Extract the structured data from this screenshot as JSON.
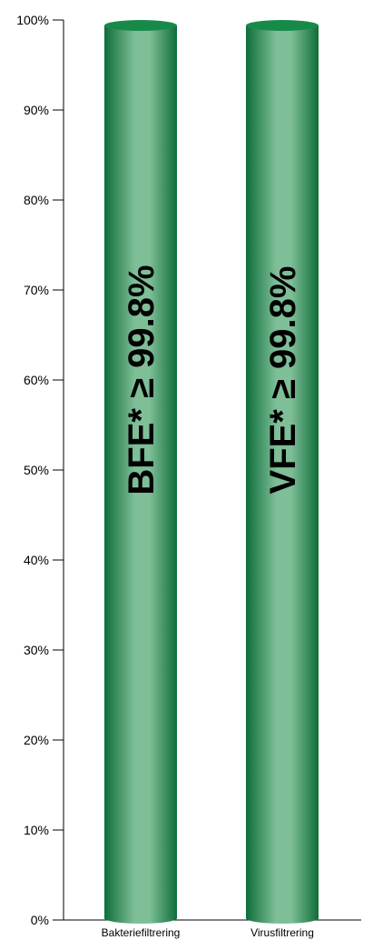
{
  "chart_data": {
    "type": "bar",
    "style": "cylinder",
    "categories": [
      "Bakteriefiltrering",
      "Virusfiltrering"
    ],
    "values": [
      100,
      100
    ],
    "bar_labels": [
      "BFE* ≥ 99.8%",
      "VFE* ≥ 99.8%"
    ],
    "ylim": [
      0,
      100
    ],
    "yticks": [
      "0%",
      "10%",
      "20%",
      "30%",
      "40%",
      "50%",
      "60%",
      "70%",
      "80%",
      "90%",
      "100%"
    ],
    "title": "",
    "xlabel": "",
    "ylabel": "",
    "grid": false,
    "colors": {
      "bar_dark": "#0e6e3a",
      "bar_mid": "#178a4a",
      "bar_light": "#7fbf98",
      "axis": "#000000"
    }
  }
}
